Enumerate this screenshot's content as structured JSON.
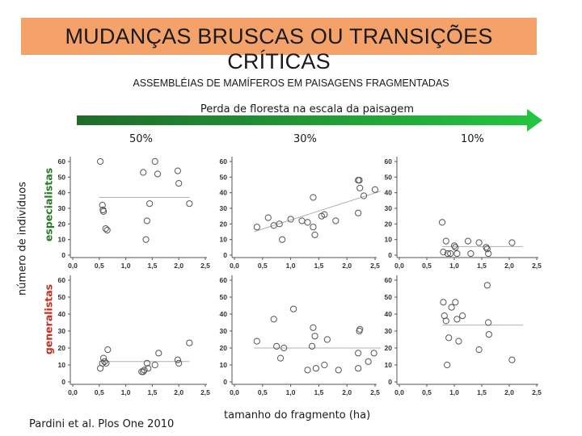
{
  "title": "MUDANÇAS BRUSCAS OU TRANSIÇÕES CRÍTICAS",
  "subtitle": "ASSEMBLÉIAS DE MAMÍFEROS EM PAISAGENS FRAGMENTADAS",
  "arrow_label": "Perda de floresta na escala da paisagem",
  "columns": [
    "50%",
    "30%",
    "10%"
  ],
  "y_axis_label": "número de indivíduos",
  "row_labels": [
    "especialistas",
    "generalistas"
  ],
  "x_axis_label": "tamanho do fragmento (ha)",
  "citation": "Pardini et al. Plos One 2010",
  "colors": {
    "banner": "#f4a26a",
    "arrow_start": "#1f6b2a",
    "arrow_end": "#23c43f",
    "specialists": "#2a7a2a",
    "generalists": "#c03020"
  },
  "chart_data": [
    {
      "type": "scatter",
      "row": "especialistas",
      "column": "50%",
      "xlim": [
        0,
        2.5
      ],
      "ylim": [
        0,
        60
      ],
      "xticks": [
        "0,0",
        "0,5",
        "1,0",
        "1,5",
        "2,0",
        "2,5"
      ],
      "yticks": [
        "0",
        "10",
        "20",
        "30",
        "40",
        "50",
        "60"
      ],
      "points": [
        [
          0.52,
          60
        ],
        [
          0.56,
          32
        ],
        [
          0.57,
          29
        ],
        [
          0.58,
          28
        ],
        [
          0.62,
          17
        ],
        [
          0.65,
          16
        ],
        [
          1.33,
          53
        ],
        [
          1.38,
          10
        ],
        [
          1.4,
          22
        ],
        [
          1.45,
          33
        ],
        [
          1.55,
          60
        ],
        [
          1.6,
          52
        ],
        [
          1.98,
          54
        ],
        [
          2.0,
          46
        ],
        [
          2.2,
          33
        ]
      ],
      "fit": {
        "kind": "flat",
        "x": [
          0.5,
          2.2
        ],
        "y": [
          37,
          37
        ]
      }
    },
    {
      "type": "scatter",
      "row": "especialistas",
      "column": "30%",
      "xlim": [
        0,
        2.5
      ],
      "ylim": [
        0,
        60
      ],
      "xticks": [
        "0,0",
        "0,5",
        "1,0",
        "1,5",
        "2,0",
        "2,5"
      ],
      "yticks": [
        "0",
        "10",
        "20",
        "30",
        "40",
        "50",
        "60"
      ],
      "points": [
        [
          0.4,
          18
        ],
        [
          0.6,
          24
        ],
        [
          0.7,
          19
        ],
        [
          0.8,
          20
        ],
        [
          0.85,
          10
        ],
        [
          1.0,
          23
        ],
        [
          1.2,
          22
        ],
        [
          1.3,
          21
        ],
        [
          1.4,
          37
        ],
        [
          1.4,
          18
        ],
        [
          1.43,
          13
        ],
        [
          1.55,
          25
        ],
        [
          1.6,
          26
        ],
        [
          1.8,
          22
        ],
        [
          2.2,
          48
        ],
        [
          2.22,
          48
        ],
        [
          2.23,
          43
        ],
        [
          2.2,
          27
        ],
        [
          2.3,
          38
        ],
        [
          2.5,
          42
        ]
      ],
      "fit": {
        "kind": "trend",
        "x": [
          0.35,
          2.6
        ],
        "y": [
          15,
          41
        ]
      }
    },
    {
      "type": "scatter",
      "row": "especialistas",
      "column": "10%",
      "xlim": [
        0,
        2.5
      ],
      "ylim": [
        0,
        60
      ],
      "xticks": [
        "0,0",
        "0,5",
        "1,0",
        "1,5",
        "2,0",
        "2,5"
      ],
      "yticks": [
        "0",
        "10",
        "20",
        "30",
        "40",
        "50",
        "60"
      ],
      "points": [
        [
          0.78,
          21
        ],
        [
          0.8,
          2
        ],
        [
          0.85,
          9
        ],
        [
          0.88,
          1
        ],
        [
          0.93,
          1
        ],
        [
          1.0,
          6
        ],
        [
          1.02,
          5
        ],
        [
          1.05,
          1
        ],
        [
          1.25,
          9
        ],
        [
          1.3,
          1
        ],
        [
          1.45,
          8
        ],
        [
          1.58,
          5
        ],
        [
          1.6,
          4
        ],
        [
          1.62,
          1
        ],
        [
          2.05,
          8
        ]
      ],
      "fit": {
        "kind": "flat",
        "x": [
          0.78,
          2.25
        ],
        "y": [
          5.5,
          5.5
        ]
      }
    },
    {
      "type": "scatter",
      "row": "generalistas",
      "column": "50%",
      "xlim": [
        0,
        2.5
      ],
      "ylim": [
        0,
        60
      ],
      "xticks": [
        "0,0",
        "0,5",
        "1,0",
        "1,5",
        "2,0",
        "2,5"
      ],
      "yticks": [
        "0",
        "10",
        "20",
        "30",
        "40",
        "50",
        "60"
      ],
      "points": [
        [
          0.52,
          8
        ],
        [
          0.56,
          11
        ],
        [
          0.58,
          14
        ],
        [
          0.6,
          12
        ],
        [
          0.63,
          11
        ],
        [
          0.66,
          19
        ],
        [
          1.3,
          6
        ],
        [
          1.33,
          6
        ],
        [
          1.35,
          7
        ],
        [
          1.4,
          11
        ],
        [
          1.42,
          8
        ],
        [
          1.55,
          10
        ],
        [
          1.62,
          17
        ],
        [
          1.98,
          13
        ],
        [
          2.0,
          11
        ],
        [
          2.2,
          23
        ]
      ],
      "fit": {
        "kind": "flat",
        "x": [
          0.5,
          2.2
        ],
        "y": [
          12,
          12
        ]
      }
    },
    {
      "type": "scatter",
      "row": "generalistas",
      "column": "30%",
      "xlim": [
        0,
        2.5
      ],
      "ylim": [
        0,
        60
      ],
      "xticks": [
        "0,0",
        "0,5",
        "1,0",
        "1,5",
        "2,0",
        "2,5"
      ],
      "yticks": [
        "0",
        "10",
        "20",
        "30",
        "40",
        "50",
        "60"
      ],
      "points": [
        [
          0.4,
          24
        ],
        [
          0.7,
          37
        ],
        [
          0.75,
          21
        ],
        [
          0.82,
          14
        ],
        [
          0.88,
          20
        ],
        [
          1.05,
          43
        ],
        [
          1.3,
          7
        ],
        [
          1.38,
          21
        ],
        [
          1.4,
          32
        ],
        [
          1.43,
          27
        ],
        [
          1.45,
          8
        ],
        [
          1.6,
          10
        ],
        [
          1.65,
          25
        ],
        [
          1.85,
          7
        ],
        [
          2.2,
          17
        ],
        [
          2.22,
          30
        ],
        [
          2.23,
          31
        ],
        [
          2.2,
          8
        ],
        [
          2.38,
          12
        ],
        [
          2.48,
          17
        ]
      ],
      "fit": {
        "kind": "flat",
        "x": [
          0.35,
          2.6
        ],
        "y": [
          20,
          20
        ]
      }
    },
    {
      "type": "scatter",
      "row": "generalistas",
      "column": "10%",
      "xlim": [
        0,
        2.5
      ],
      "ylim": [
        0,
        60
      ],
      "xticks": [
        "0,0",
        "0,5",
        "1,0",
        "1,5",
        "2,0",
        "2,5"
      ],
      "yticks": [
        "0",
        "10",
        "20",
        "30",
        "40",
        "50",
        "60"
      ],
      "points": [
        [
          0.8,
          47
        ],
        [
          0.82,
          39
        ],
        [
          0.85,
          36
        ],
        [
          0.87,
          10
        ],
        [
          0.9,
          26
        ],
        [
          0.95,
          44
        ],
        [
          1.02,
          47
        ],
        [
          1.05,
          37
        ],
        [
          1.08,
          24
        ],
        [
          1.15,
          39
        ],
        [
          1.45,
          19
        ],
        [
          1.6,
          57
        ],
        [
          1.62,
          35
        ],
        [
          1.63,
          28
        ],
        [
          2.05,
          13
        ]
      ],
      "fit": {
        "kind": "flat",
        "x": [
          0.78,
          2.25
        ],
        "y": [
          33.5,
          33.5
        ]
      }
    }
  ]
}
